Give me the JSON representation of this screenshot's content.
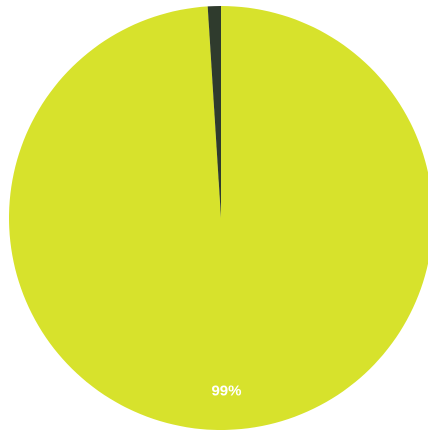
{
  "chart_data": {
    "type": "pie",
    "slices": [
      {
        "value": 99,
        "label": "99%",
        "color": "#d7e22c"
      },
      {
        "value": 1,
        "label": "",
        "color": "#2f3b2d"
      }
    ],
    "start_angle_deg": 0,
    "direction": "clockwise"
  }
}
